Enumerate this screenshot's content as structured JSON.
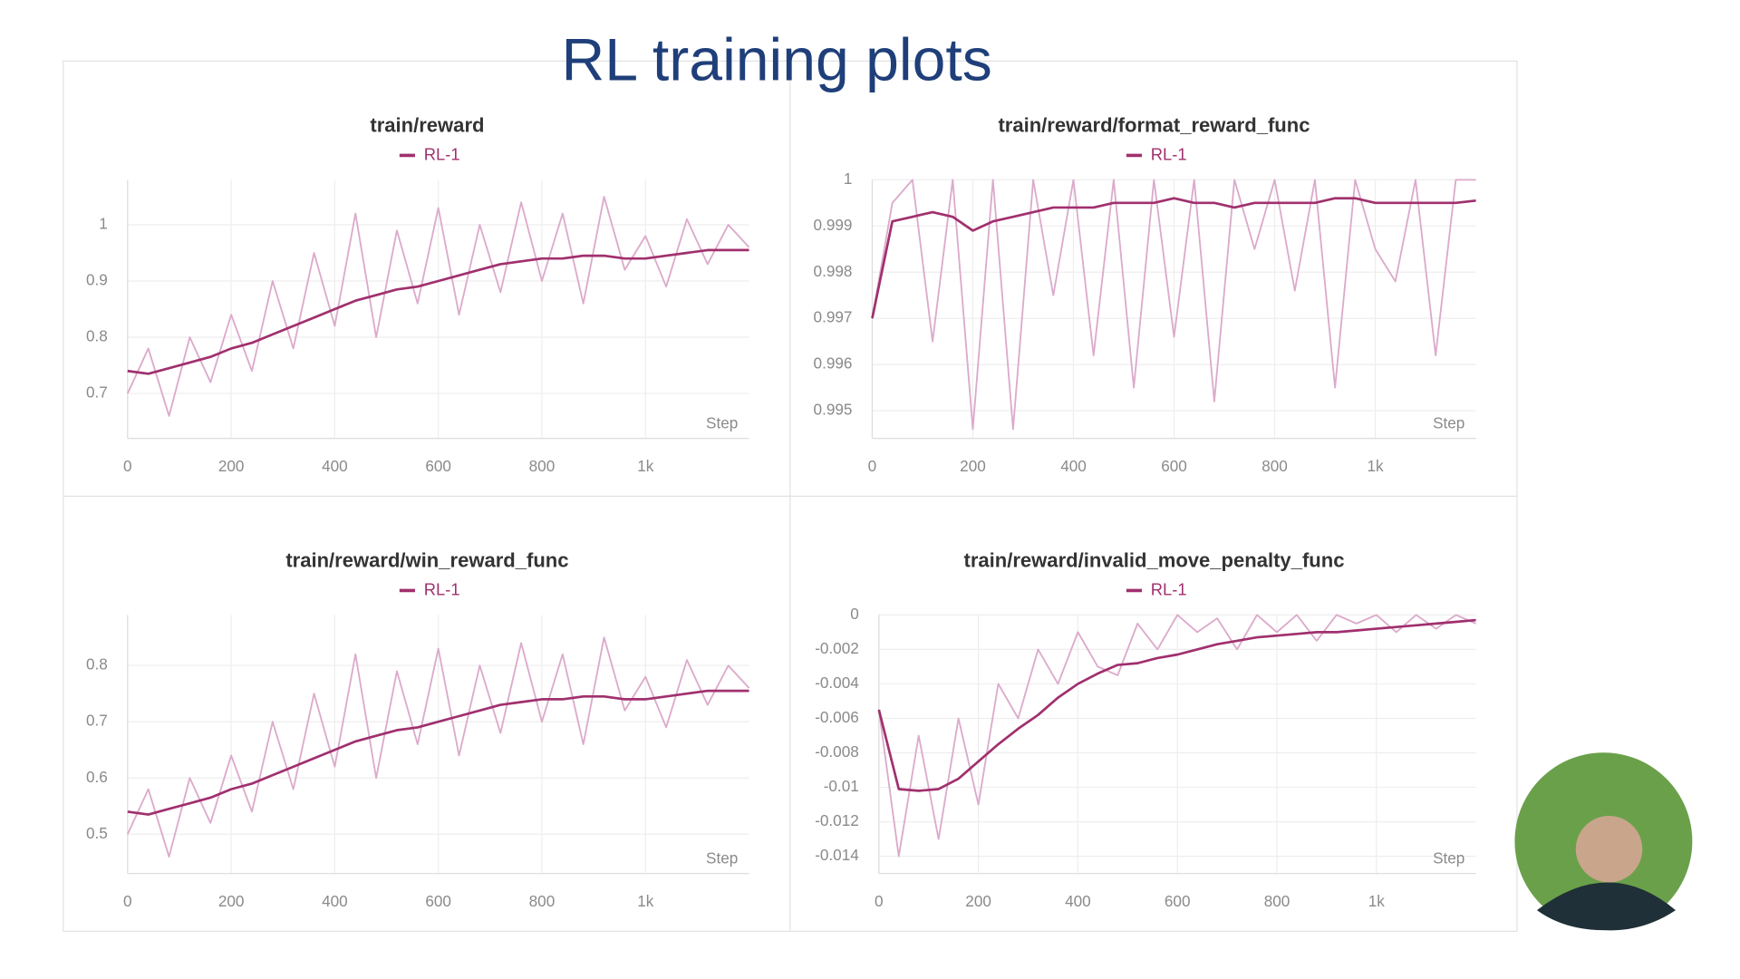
{
  "title": "RL training plots",
  "chart_data": [
    {
      "type": "line",
      "title": "train/reward",
      "xlabel": "Step",
      "x": [
        0,
        40,
        80,
        120,
        160,
        200,
        240,
        280,
        320,
        360,
        400,
        440,
        480,
        520,
        560,
        600,
        640,
        680,
        720,
        760,
        800,
        840,
        880,
        920,
        960,
        1000,
        1040,
        1080,
        1120,
        1160,
        1200
      ],
      "xlim": [
        0,
        1200
      ],
      "xticks": [
        0,
        200,
        400,
        600,
        800,
        {
          "value": 1000,
          "label": "1k"
        }
      ],
      "ylim": [
        0.62,
        1.08
      ],
      "yticks": [
        0.7,
        0.8,
        0.9,
        1
      ],
      "grid": true,
      "series": [
        {
          "color": "#dcaacb",
          "values": [
            0.7,
            0.78,
            0.66,
            0.8,
            0.72,
            0.84,
            0.74,
            0.9,
            0.78,
            0.95,
            0.82,
            1.02,
            0.8,
            0.99,
            0.86,
            1.03,
            0.84,
            1.0,
            0.88,
            1.04,
            0.9,
            1.02,
            0.86,
            1.05,
            0.92,
            0.98,
            0.89,
            1.01,
            0.93,
            1.0,
            0.96
          ]
        },
        {
          "name": "RL-1",
          "color": "#a0306e",
          "values": [
            0.74,
            0.735,
            0.745,
            0.755,
            0.765,
            0.78,
            0.79,
            0.805,
            0.82,
            0.835,
            0.85,
            0.865,
            0.875,
            0.885,
            0.89,
            0.9,
            0.91,
            0.92,
            0.93,
            0.935,
            0.94,
            0.94,
            0.945,
            0.945,
            0.94,
            0.94,
            0.945,
            0.95,
            0.955,
            0.955,
            0.955
          ]
        }
      ]
    },
    {
      "type": "line",
      "title": "train/reward/format_reward_func",
      "xlabel": "Step",
      "x": [
        0,
        40,
        80,
        120,
        160,
        200,
        240,
        280,
        320,
        360,
        400,
        440,
        480,
        520,
        560,
        600,
        640,
        680,
        720,
        760,
        800,
        840,
        880,
        920,
        960,
        1000,
        1040,
        1080,
        1120,
        1160,
        1200
      ],
      "xlim": [
        0,
        1200
      ],
      "xticks": [
        0,
        200,
        400,
        600,
        800,
        {
          "value": 1000,
          "label": "1k"
        }
      ],
      "ylim": [
        0.9944,
        1
      ],
      "yticks": [
        0.995,
        0.996,
        0.997,
        0.998,
        0.999,
        1
      ],
      "grid": true,
      "series": [
        {
          "color": "#dcaacb",
          "values": [
            0.997,
            0.9995,
            1,
            0.9965,
            1,
            0.9946,
            1,
            0.9946,
            1,
            0.9975,
            1,
            0.9962,
            1,
            0.9955,
            1,
            0.9966,
            1,
            0.9952,
            1,
            0.9985,
            1,
            0.9976,
            1,
            0.9955,
            1,
            0.9985,
            0.9978,
            1,
            0.9962,
            1,
            1
          ]
        },
        {
          "name": "RL-1",
          "color": "#a0306e",
          "values": [
            0.997,
            0.9991,
            0.9992,
            0.9993,
            0.9992,
            0.9989,
            0.9991,
            0.9992,
            0.9993,
            0.9994,
            0.9994,
            0.9994,
            0.9995,
            0.9995,
            0.9995,
            0.9996,
            0.9995,
            0.9995,
            0.9994,
            0.9995,
            0.9995,
            0.9995,
            0.9995,
            0.9996,
            0.9996,
            0.9995,
            0.9995,
            0.9995,
            0.9995,
            0.9995,
            0.99955
          ]
        }
      ]
    },
    {
      "type": "line",
      "title": "train/reward/win_reward_func",
      "xlabel": "Step",
      "x": [
        0,
        40,
        80,
        120,
        160,
        200,
        240,
        280,
        320,
        360,
        400,
        440,
        480,
        520,
        560,
        600,
        640,
        680,
        720,
        760,
        800,
        840,
        880,
        920,
        960,
        1000,
        1040,
        1080,
        1120,
        1160,
        1200
      ],
      "xlim": [
        0,
        1200
      ],
      "xticks": [
        0,
        200,
        400,
        600,
        800,
        {
          "value": 1000,
          "label": "1k"
        }
      ],
      "ylim": [
        0.43,
        0.89
      ],
      "yticks": [
        0.5,
        0.6,
        0.7,
        0.8
      ],
      "grid": true,
      "series": [
        {
          "color": "#dcaacb",
          "values": [
            0.5,
            0.58,
            0.46,
            0.6,
            0.52,
            0.64,
            0.54,
            0.7,
            0.58,
            0.75,
            0.62,
            0.82,
            0.6,
            0.79,
            0.66,
            0.83,
            0.64,
            0.8,
            0.68,
            0.84,
            0.7,
            0.82,
            0.66,
            0.85,
            0.72,
            0.78,
            0.69,
            0.81,
            0.73,
            0.8,
            0.76
          ]
        },
        {
          "name": "RL-1",
          "color": "#a0306e",
          "values": [
            0.54,
            0.535,
            0.545,
            0.555,
            0.565,
            0.58,
            0.59,
            0.605,
            0.62,
            0.635,
            0.65,
            0.665,
            0.675,
            0.685,
            0.69,
            0.7,
            0.71,
            0.72,
            0.73,
            0.735,
            0.74,
            0.74,
            0.745,
            0.745,
            0.74,
            0.74,
            0.745,
            0.75,
            0.755,
            0.755,
            0.755
          ]
        }
      ]
    },
    {
      "type": "line",
      "title": "train/reward/invalid_move_penalty_func",
      "xlabel": "Step",
      "x": [
        0,
        40,
        80,
        120,
        160,
        200,
        240,
        280,
        320,
        360,
        400,
        440,
        480,
        520,
        560,
        600,
        640,
        680,
        720,
        760,
        800,
        840,
        880,
        920,
        960,
        1000,
        1040,
        1080,
        1120,
        1160,
        1200
      ],
      "xlim": [
        0,
        1200
      ],
      "xticks": [
        0,
        200,
        400,
        600,
        800,
        {
          "value": 1000,
          "label": "1k"
        }
      ],
      "ylim": [
        -0.015,
        0
      ],
      "yticks": [
        -0.014,
        -0.012,
        -0.01,
        -0.008,
        -0.006,
        -0.004,
        -0.002,
        0
      ],
      "grid": true,
      "series": [
        {
          "color": "#dcaacb",
          "values": [
            -0.0055,
            -0.014,
            -0.007,
            -0.013,
            -0.006,
            -0.011,
            -0.004,
            -0.006,
            -0.002,
            -0.004,
            -0.001,
            -0.003,
            -0.0035,
            -0.0005,
            -0.002,
            0,
            -0.001,
            -0.0002,
            -0.002,
            0,
            -0.001,
            0,
            -0.0015,
            0,
            -0.0005,
            0,
            -0.001,
            0,
            -0.0008,
            0,
            -0.0005
          ]
        },
        {
          "name": "RL-1",
          "color": "#a0306e",
          "values": [
            -0.0055,
            -0.0101,
            -0.0102,
            -0.0101,
            -0.0095,
            -0.0085,
            -0.0075,
            -0.0066,
            -0.0058,
            -0.0048,
            -0.004,
            -0.0034,
            -0.0029,
            -0.0028,
            -0.0025,
            -0.0023,
            -0.002,
            -0.0017,
            -0.0015,
            -0.0013,
            -0.0012,
            -0.0011,
            -0.001,
            -0.001,
            -0.0009,
            -0.0008,
            -0.0007,
            -0.0006,
            -0.0005,
            -0.0004,
            -0.0003
          ]
        }
      ]
    }
  ]
}
